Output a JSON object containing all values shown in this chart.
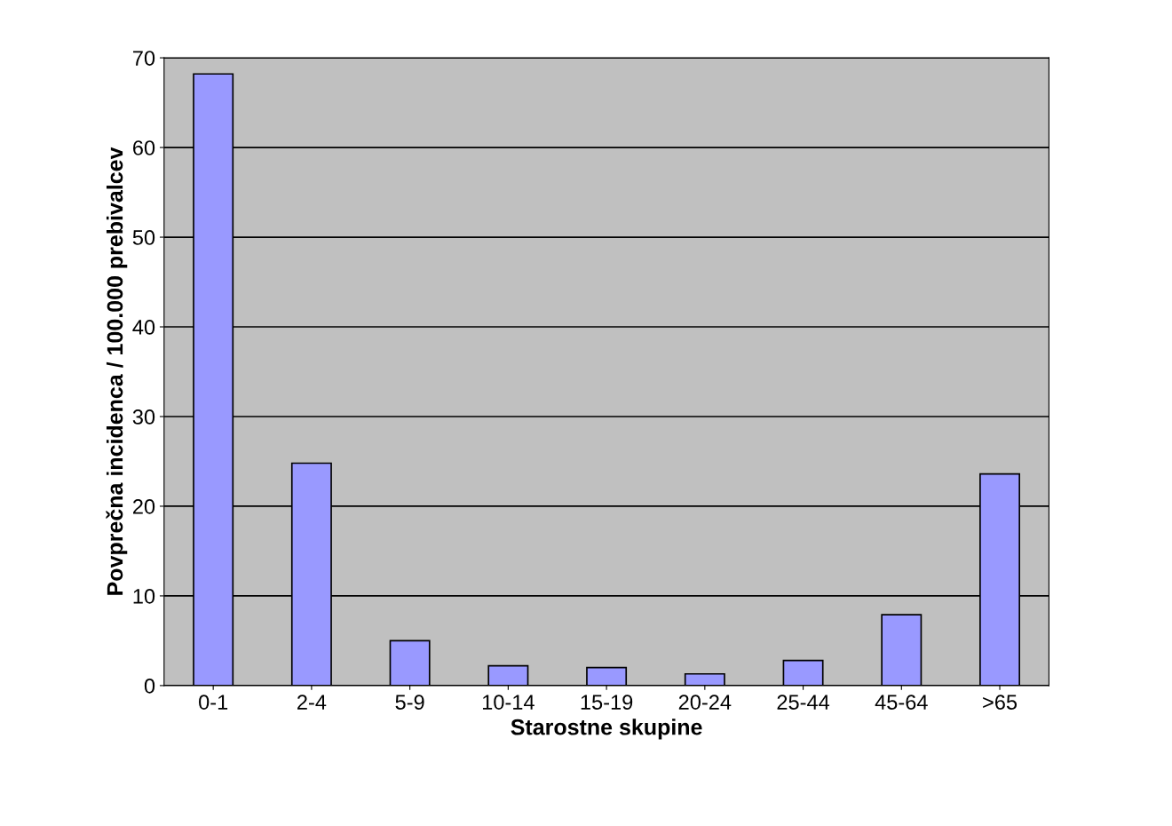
{
  "chart_data": {
    "type": "bar",
    "xlabel": "Starostne skupine",
    "ylabel": "Povprečna incidenca / 100.000 prebivalcev",
    "categories": [
      "0-1",
      "2-4",
      "5-9",
      "10-14",
      "15-19",
      "20-24",
      "25-44",
      "45-64",
      ">65"
    ],
    "values": [
      68.2,
      24.8,
      5.0,
      2.2,
      2.0,
      1.3,
      2.8,
      7.9,
      23.6
    ],
    "color": "#9999ff",
    "ylim": [
      0,
      70
    ],
    "yticks": [
      0,
      10,
      20,
      30,
      40,
      50,
      60,
      70
    ],
    "grid": "y"
  }
}
